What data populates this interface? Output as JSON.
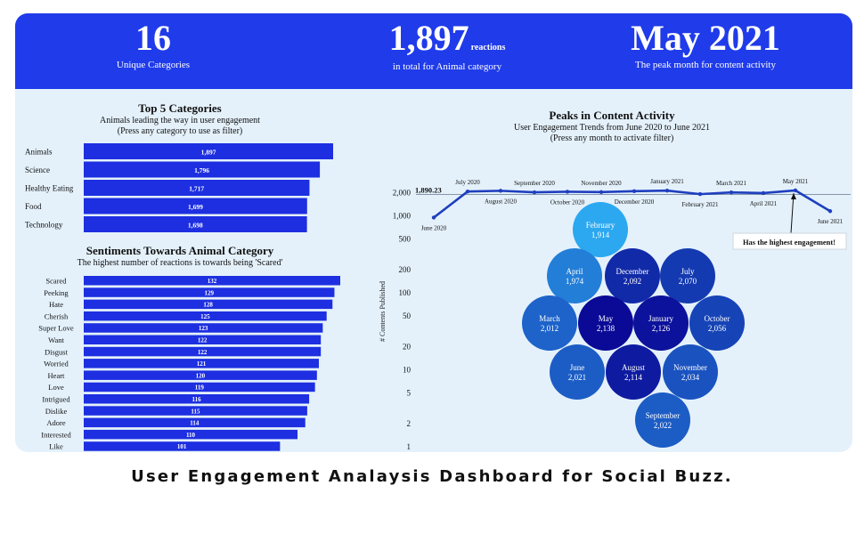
{
  "kpis": {
    "categories": {
      "value": "16",
      "label": "Unique Categories"
    },
    "reactions": {
      "value": "1,897",
      "unit": "reactions",
      "label": "in total for Animal category"
    },
    "peak": {
      "value": "May 2021",
      "label": "The peak month for content activity"
    }
  },
  "top_categories": {
    "title": "Top 5 Categories",
    "subtitle": "Animals leading the way in user engagement",
    "hint": "(Press any category to use as filter)"
  },
  "sentiments": {
    "title": "Sentiments Towards Animal Category",
    "subtitle": "The highest number of reactions is towards being 'Scared'"
  },
  "peaks": {
    "title": "Peaks in Content Activity",
    "subtitle": "User Engagement Trends from June 2020 to June 2021",
    "hint": "(Press any month to activate filter)",
    "y_axis_label": "# Contents Published",
    "avg_label": "1,890.23",
    "annotation": "Has the highest engagement!"
  },
  "caption": "User Engagement Analaysis Dashboard for Social Buzz.",
  "colors": {
    "band": "#1f3bea",
    "bar": "#1d2fe0",
    "panel": "#e4f1fb",
    "line": "#1f3fbf"
  },
  "chart_data": [
    {
      "type": "bar",
      "orientation": "horizontal",
      "title": "Top 5 Categories",
      "categories": [
        "Animals",
        "Science",
        "Healthy Eating",
        "Food",
        "Technology"
      ],
      "values": [
        1897,
        1796,
        1717,
        1699,
        1698
      ],
      "labels": [
        "1,897",
        "1,796",
        "1,717",
        "1,699",
        "1,698"
      ]
    },
    {
      "type": "bar",
      "orientation": "horizontal",
      "title": "Sentiments Towards Animal Category",
      "categories": [
        "Scared",
        "Peeking",
        "Hate",
        "Cherish",
        "Super Love",
        "Want",
        "Disgust",
        "Worried",
        "Heart",
        "Love",
        "Intrigued",
        "Dislike",
        "Adore",
        "Interested",
        "Like"
      ],
      "values": [
        132,
        129,
        128,
        125,
        123,
        122,
        122,
        121,
        120,
        119,
        116,
        115,
        114,
        110,
        101
      ]
    },
    {
      "type": "line",
      "title": "Peaks in Content Activity",
      "ylabel": "# Contents Published",
      "y_scale": "log",
      "y_ticks": [
        "2,000",
        "1,000",
        "500",
        "200",
        "100",
        "50",
        "20",
        "10",
        "5",
        "2",
        "1"
      ],
      "x": [
        "June 2020",
        "July 2020",
        "August 2020",
        "September 2020",
        "October 2020",
        "November 2020",
        "December 2020",
        "January 2021",
        "February 2021",
        "March 2021",
        "April 2021",
        "May 2021",
        "June 2021"
      ],
      "values": [
        950,
        2070,
        2114,
        2022,
        2056,
        2034,
        2092,
        2126,
        1914,
        2012,
        1974,
        2138,
        1150
      ],
      "reference_line": {
        "label": "1,890.23",
        "value": 1890.23
      }
    },
    {
      "type": "bubble",
      "title": "Peaks in Content Activity",
      "months": [
        "February",
        "April",
        "December",
        "July",
        "March",
        "May",
        "January",
        "October",
        "June",
        "August",
        "November",
        "September"
      ],
      "values": [
        1914,
        1974,
        2092,
        2070,
        2012,
        2138,
        2126,
        2056,
        2021,
        2114,
        2034,
        2022
      ],
      "labels": [
        "1,914",
        "1,974",
        "2,092",
        "2,070",
        "2,012",
        "2,138",
        "2,126",
        "2,056",
        "2,021",
        "2,114",
        "2,034",
        "2,022"
      ]
    }
  ]
}
